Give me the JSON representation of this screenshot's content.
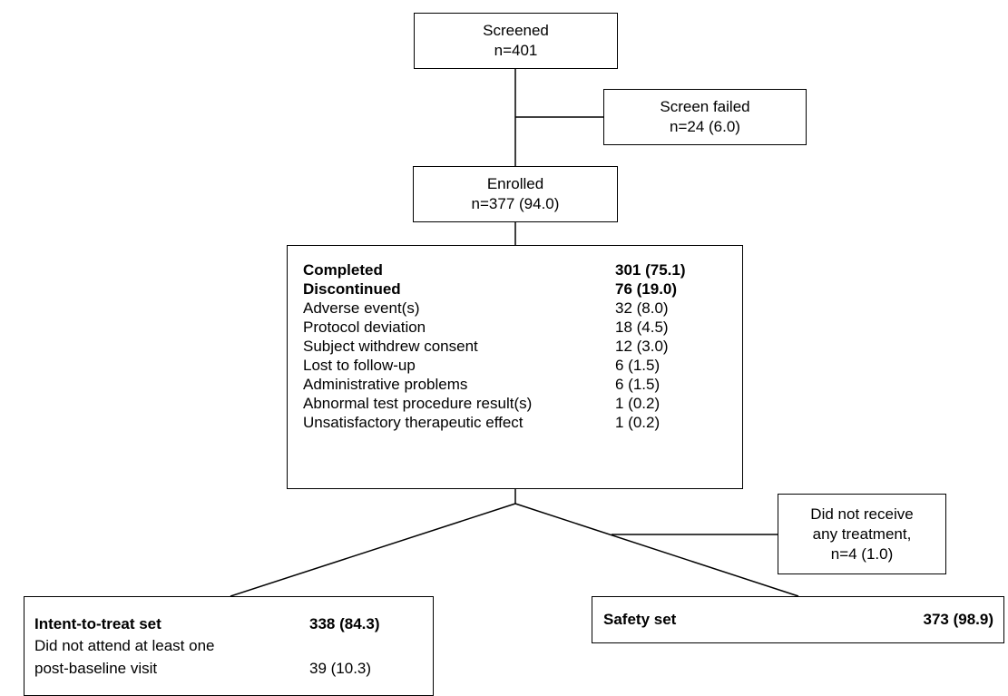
{
  "screened": {
    "title": "Screened",
    "count": "n=401"
  },
  "screen_failed": {
    "title": "Screen failed",
    "count": "n=24 (6.0)"
  },
  "enrolled": {
    "title": "Enrolled",
    "count": "n=377 (94.0)"
  },
  "disposition": {
    "rows": [
      {
        "label": "Completed",
        "value": "301 (75.1)",
        "bold": true
      },
      {
        "label": "Discontinued",
        "value": "76 (19.0)",
        "bold": true
      },
      {
        "label": "Adverse event(s)",
        "value": "32 (8.0)"
      },
      {
        "label": "Protocol deviation",
        "value": "18 (4.5)"
      },
      {
        "label": "Subject withdrew consent",
        "value": "12 (3.0)"
      },
      {
        "label": "Lost to follow-up",
        "value": "6 (1.5)"
      },
      {
        "label": "Administrative problems",
        "value": "6 (1.5)"
      },
      {
        "label": "Abnormal test procedure result(s)",
        "value": "1 (0.2)"
      },
      {
        "label": "Unsatisfactory therapeutic effect",
        "value": "1 (0.2)"
      }
    ]
  },
  "no_treatment": {
    "line1": "Did not receive",
    "line2": "any treatment,",
    "line3": "n=4 (1.0)"
  },
  "itt": {
    "title": "Intent-to-treat set",
    "value": "338 (84.3)",
    "sub_line1": "Did not attend at least one",
    "sub_line2": "post-baseline visit",
    "sub_value": "39 (10.3)"
  },
  "safety": {
    "title": "Safety set",
    "value": "373 (98.9)"
  }
}
